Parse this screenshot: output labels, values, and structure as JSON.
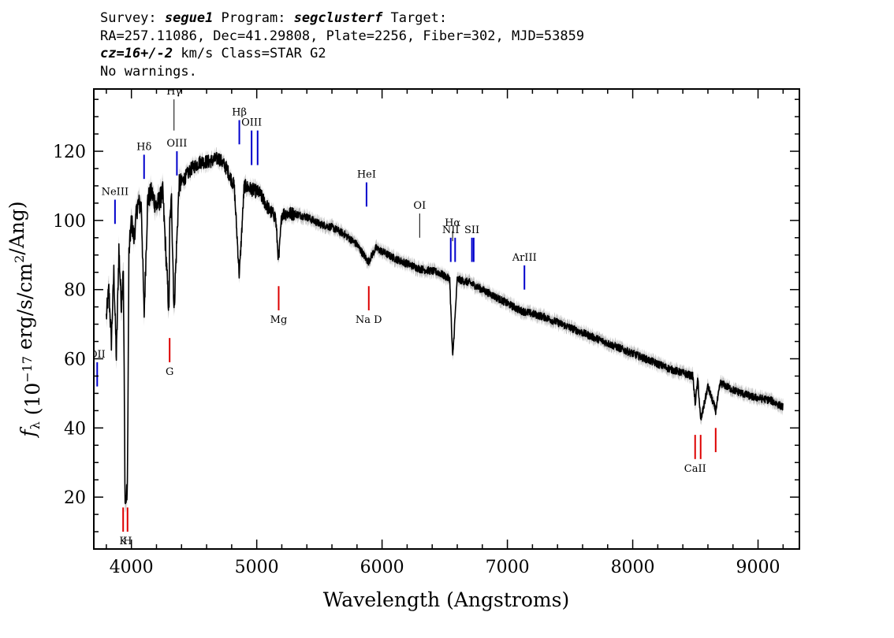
{
  "header": {
    "line1_prefix": "Survey: ",
    "survey": "segue1",
    "line1_mid": " Program: ",
    "program": "segclusterf",
    "line1_suffix": " Target:",
    "line2": "RA=257.11086, Dec=41.29808, Plate=2256, Fiber=302, MJD=53859",
    "cz": "cz=16+/-2",
    "line3_suffix": " km/s Class=STAR G2",
    "line4": "No warnings."
  },
  "colors": {
    "spectrum": "#000000",
    "error_band": "#bbbbbb",
    "emission_lines": "#0000cc",
    "absorption_lines": "#dd0000"
  },
  "chart_data": {
    "type": "line",
    "xlabel": "Wavelength (Angstroms)",
    "ylabel": "f_λ (10^-17 erg/s/cm^2/Ang)",
    "xlim": [
      3700,
      9330
    ],
    "ylim": [
      5,
      138
    ],
    "xticks": [
      4000,
      5000,
      6000,
      7000,
      8000,
      9000
    ],
    "yticks": [
      20,
      40,
      60,
      80,
      100,
      120
    ],
    "grid": false,
    "series": [
      {
        "x": [
          3800,
          3820,
          3840,
          3860,
          3880,
          3900,
          3920,
          3935,
          3950,
          3968,
          3980,
          4000,
          4020,
          4050,
          4080,
          4101,
          4130,
          4160,
          4200,
          4250,
          4300,
          4305,
          4320,
          4340,
          4380,
          4420,
          4480,
          4550,
          4620,
          4700,
          4760,
          4820,
          4861,
          4900,
          4960,
          5020,
          5100,
          5150,
          5175,
          5200,
          5300,
          5400,
          5500,
          5600,
          5700,
          5800,
          5890,
          5950,
          6100,
          6300,
          6450,
          6540,
          6563,
          6600,
          6700,
          6900,
          7100,
          7300,
          7500,
          7700,
          7900,
          8100,
          8300,
          8480,
          8498,
          8520,
          8542,
          8600,
          8662,
          8700,
          8800,
          8950,
          9100,
          9200
        ],
        "y": [
          72,
          80,
          65,
          85,
          60,
          92,
          75,
          88,
          18,
          22,
          90,
          100,
          95,
          105,
          104,
          72,
          106,
          108,
          104,
          108,
          73,
          98,
          106,
          74,
          110,
          112,
          115,
          117,
          117,
          118,
          115,
          110,
          84,
          110,
          109,
          108,
          103,
          101,
          88,
          102,
          102,
          101,
          99,
          98,
          96,
          93,
          88,
          92,
          89,
          86,
          85,
          83,
          60,
          83,
          82,
          78,
          74,
          72,
          69,
          66,
          63,
          60,
          57,
          55,
          47,
          54,
          42,
          52,
          45,
          53,
          51,
          49,
          48,
          46
        ]
      }
    ],
    "line_markers": {
      "emission": [
        {
          "label": "OII",
          "x": 3727,
          "y1": 52,
          "y2": 59
        },
        {
          "label": "NeIII",
          "x": 3869,
          "y1": 99,
          "y2": 106
        },
        {
          "label": "Hδ",
          "x": 4101,
          "y1": 112,
          "y2": 119
        },
        {
          "label": "OIII",
          "x": 4363,
          "y1": 113,
          "y2": 120
        },
        {
          "label": "Hβ",
          "x": 4861,
          "y1": 122,
          "y2": 129
        },
        {
          "label": "OIII",
          "x": 4959,
          "y1": 116,
          "y2": 126
        },
        {
          "label": "",
          "x": 5007,
          "y1": 116,
          "y2": 126
        },
        {
          "label": "HeI",
          "x": 5876,
          "y1": 104,
          "y2": 111
        },
        {
          "label": "NII",
          "x": 6548,
          "y1": 88,
          "y2": 95
        },
        {
          "label": "",
          "x": 6583,
          "y1": 88,
          "y2": 95
        },
        {
          "label": "SII",
          "x": 6717,
          "y1": 88,
          "y2": 95
        },
        {
          "label": "",
          "x": 6731,
          "y1": 88,
          "y2": 95
        },
        {
          "label": "ArIII",
          "x": 7136,
          "y1": 80,
          "y2": 87
        }
      ],
      "thin": [
        {
          "label": "Hγ",
          "x": 4340,
          "y1": 126,
          "y2": 135
        },
        {
          "label": "OI",
          "x": 6300,
          "y1": 95,
          "y2": 102
        },
        {
          "label": "Hα",
          "x": 6563,
          "y1": 94,
          "y2": 97
        }
      ],
      "absorption": [
        {
          "label": "K",
          "x": 3934,
          "y1": 10,
          "y2": 17
        },
        {
          "label": "H",
          "x": 3969,
          "y1": 10,
          "y2": 17
        },
        {
          "label": "G",
          "x": 4305,
          "y1": 59,
          "y2": 66
        },
        {
          "label": "Mg",
          "x": 5175,
          "y1": 74,
          "y2": 81
        },
        {
          "label": "Na D",
          "x": 5894,
          "y1": 74,
          "y2": 81
        },
        {
          "label": "CaII",
          "x": 8498,
          "y1": 31,
          "y2": 38
        },
        {
          "label": "",
          "x": 8542,
          "y1": 31,
          "y2": 38
        },
        {
          "label": "",
          "x": 8662,
          "y1": 33,
          "y2": 40
        }
      ]
    }
  }
}
